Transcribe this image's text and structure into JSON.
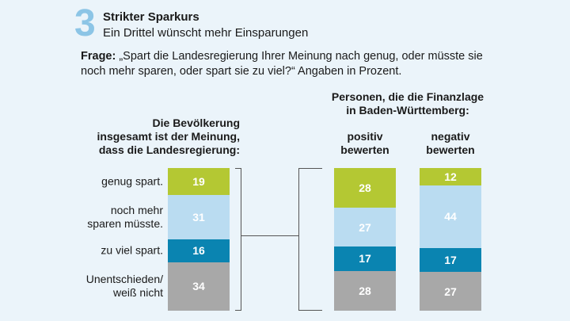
{
  "header": {
    "number": "3",
    "title": "Strikter Sparkurs",
    "subtitle": "Ein Drittel wünscht mehr Einsparungen",
    "question_label": "Frage:",
    "question_text": " „Spart die Landesregierung Ihrer Meinung nach genug, oder müsste sie noch mehr sparen, oder spart sie zu viel?“ Angaben in Prozent."
  },
  "chart_data": {
    "type": "stacked-bar",
    "unit": "Prozent",
    "left_heading": [
      "Die Bevölkerung",
      "insgesamt ist der Meinung,",
      "dass die Landesregierung:"
    ],
    "group_heading": [
      "Personen, die die Finanzlage",
      "in Baden-Württemberg:"
    ],
    "categories": [
      "genug spart.",
      "noch mehr sparen müsste.",
      "zu viel spart.",
      "Unentschieden/ weiß nicht"
    ],
    "category_lines": [
      [
        "genug spart."
      ],
      [
        "noch mehr",
        "sparen müsste."
      ],
      [
        "zu viel spart."
      ],
      [
        "Unentschieden/",
        "weiß nicht"
      ]
    ],
    "colors": [
      "#b4c833",
      "#badcf1",
      "#0a84b1",
      "#a8a8a8"
    ],
    "series": [
      {
        "name": "",
        "values": [
          19,
          31,
          16,
          34
        ]
      },
      {
        "name": "positiv bewerten",
        "values": [
          28,
          27,
          17,
          28
        ]
      },
      {
        "name": "negativ bewerten",
        "values": [
          12,
          44,
          17,
          27
        ]
      }
    ],
    "series_heading_lines": [
      [],
      [
        "positiv",
        "bewerten"
      ],
      [
        "negativ",
        "bewerten"
      ]
    ]
  }
}
